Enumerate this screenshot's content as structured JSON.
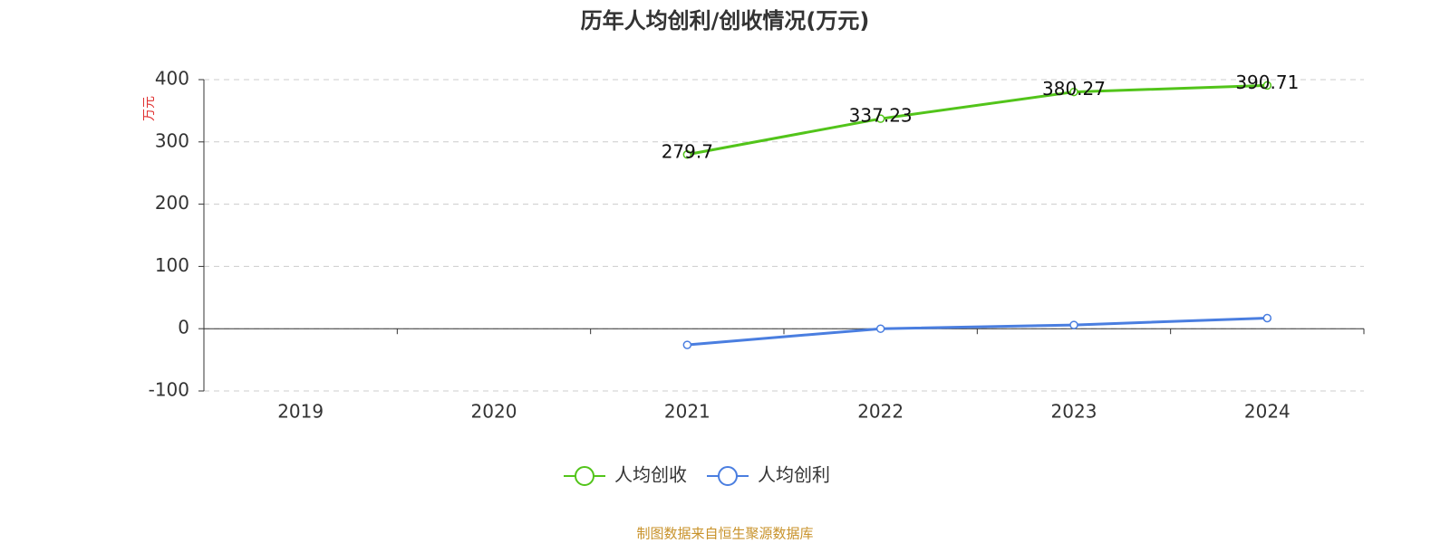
{
  "chart_data": {
    "type": "line",
    "title": "历年人均创利/创收情况(万元)",
    "y_label": "万元",
    "categories": [
      "2019",
      "2020",
      "2021",
      "2022",
      "2023",
      "2024"
    ],
    "series": [
      {
        "name": "人均创收",
        "color": "#52c41a",
        "values": [
          null,
          null,
          279.7,
          337.23,
          380.27,
          390.71
        ],
        "show_labels": true
      },
      {
        "name": "人均创利",
        "color": "#4a7ee0",
        "values": [
          null,
          null,
          -26,
          0,
          6,
          17
        ],
        "show_labels": false
      }
    ],
    "ylim": [
      -100,
      400
    ],
    "yticks": [
      -100,
      0,
      100,
      200,
      300,
      400
    ],
    "grid": true,
    "source": "制图数据来自恒生聚源数据库"
  }
}
